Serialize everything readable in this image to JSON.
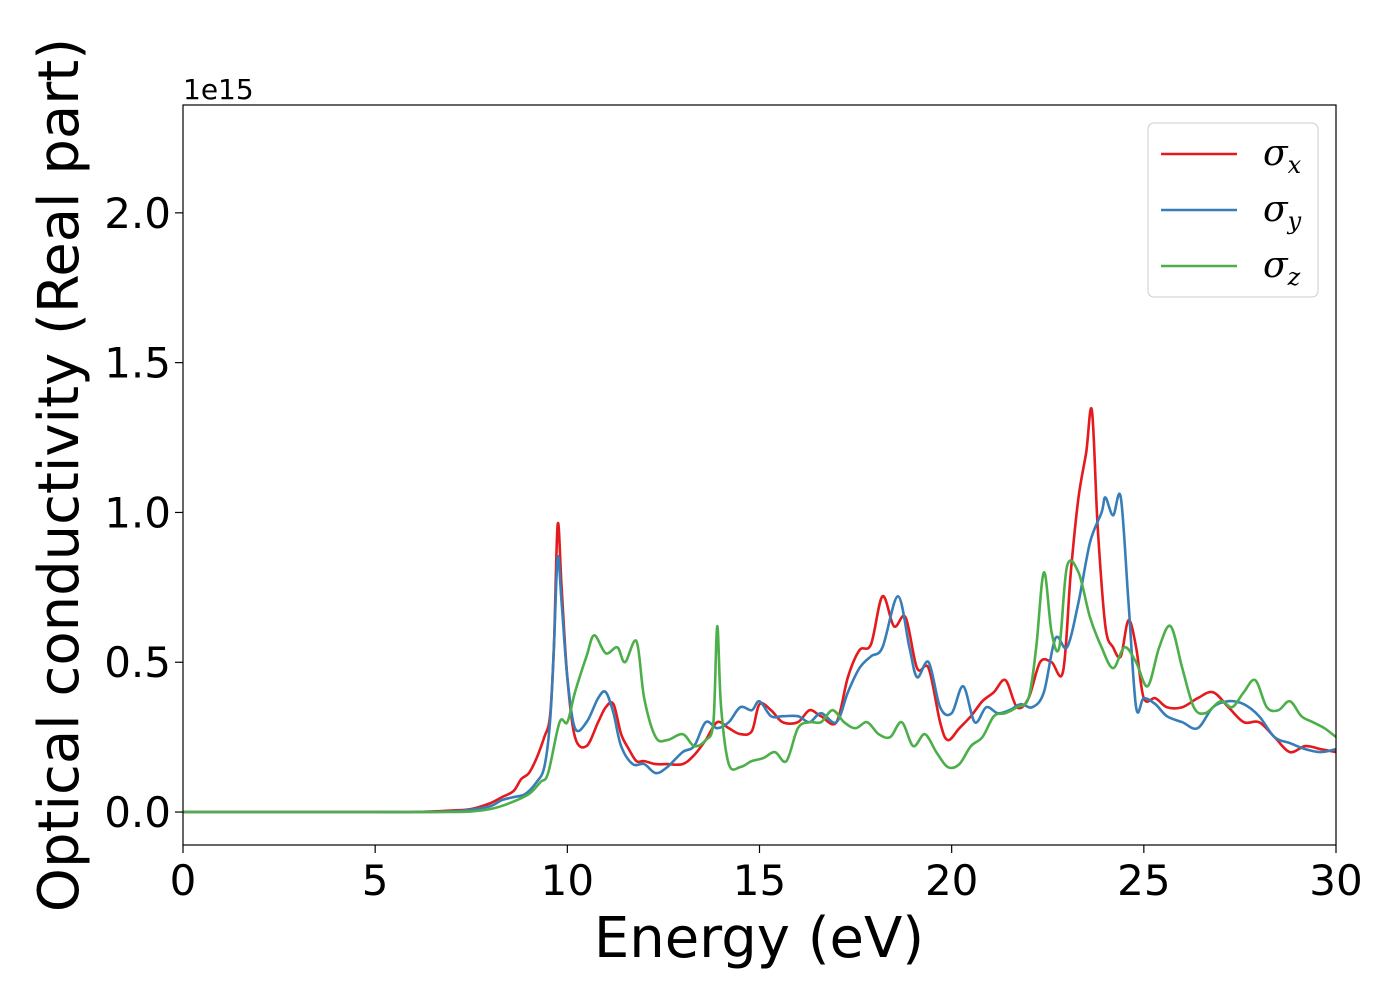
{
  "chart_data": {
    "type": "line",
    "xlabel": "Energy (eV)",
    "ylabel": "Optical conductivity (Real part)",
    "y_offset_text": "1e15",
    "xlim": [
      0,
      30
    ],
    "ylim": [
      -0.11,
      2.36
    ],
    "x_ticks": [
      0,
      5,
      10,
      15,
      20,
      25,
      30
    ],
    "x_tick_labels": [
      "0",
      "5",
      "10",
      "15",
      "20",
      "25",
      "30"
    ],
    "y_ticks": [
      0.0,
      0.5,
      1.0,
      1.5,
      2.0
    ],
    "y_tick_labels": [
      "0.0",
      "0.5",
      "1.0",
      "1.5",
      "2.0"
    ],
    "grid": false,
    "legend_position": "top-right",
    "colors": {
      "sigma_x": "#e41a1c",
      "sigma_y": "#377eb8",
      "sigma_z": "#4daf4a"
    },
    "series": [
      {
        "name": "σx",
        "symbol": "σ",
        "subscript": "x",
        "color": "#e41a1c",
        "x": [
          0,
          1,
          2,
          3,
          4,
          5,
          6,
          7,
          7.5,
          8,
          8.3,
          8.6,
          8.8,
          9.0,
          9.2,
          9.4,
          9.55,
          9.65,
          9.75,
          9.85,
          10.0,
          10.2,
          10.5,
          10.8,
          11.0,
          11.2,
          11.4,
          11.6,
          11.8,
          12.0,
          12.3,
          12.6,
          13.0,
          13.3,
          13.6,
          13.9,
          14.2,
          14.5,
          14.8,
          15.0,
          15.3,
          15.6,
          16.0,
          16.3,
          16.6,
          17.0,
          17.3,
          17.6,
          17.9,
          18.2,
          18.5,
          18.8,
          19.1,
          19.4,
          19.7,
          19.9,
          20.2,
          20.5,
          20.8,
          21.1,
          21.4,
          21.7,
          22.0,
          22.3,
          22.6,
          22.9,
          23.1,
          23.3,
          23.5,
          23.65,
          23.8,
          24.0,
          24.2,
          24.4,
          24.6,
          24.8,
          25.0,
          25.3,
          25.6,
          26.0,
          26.4,
          26.8,
          27.2,
          27.6,
          28.0,
          28.4,
          28.8,
          29.2,
          29.6,
          30.0
        ],
        "values": [
          0,
          0,
          0,
          0,
          0,
          0,
          0,
          0.005,
          0.01,
          0.03,
          0.05,
          0.07,
          0.11,
          0.13,
          0.18,
          0.25,
          0.32,
          0.55,
          0.96,
          0.75,
          0.45,
          0.25,
          0.22,
          0.3,
          0.35,
          0.36,
          0.26,
          0.21,
          0.17,
          0.17,
          0.16,
          0.16,
          0.16,
          0.19,
          0.24,
          0.3,
          0.28,
          0.26,
          0.27,
          0.36,
          0.34,
          0.3,
          0.3,
          0.34,
          0.32,
          0.3,
          0.45,
          0.54,
          0.56,
          0.72,
          0.62,
          0.65,
          0.48,
          0.48,
          0.3,
          0.24,
          0.28,
          0.32,
          0.37,
          0.4,
          0.44,
          0.35,
          0.38,
          0.5,
          0.5,
          0.47,
          0.8,
          1.05,
          1.2,
          1.34,
          0.95,
          0.62,
          0.55,
          0.52,
          0.64,
          0.55,
          0.38,
          0.38,
          0.35,
          0.35,
          0.38,
          0.4,
          0.35,
          0.3,
          0.3,
          0.25,
          0.2,
          0.22,
          0.21,
          0.2
        ]
      },
      {
        "name": "σy",
        "symbol": "σ",
        "subscript": "y",
        "color": "#377eb8",
        "x": [
          0,
          1,
          2,
          3,
          4,
          5,
          6,
          7,
          7.5,
          8,
          8.3,
          8.6,
          8.9,
          9.2,
          9.4,
          9.55,
          9.65,
          9.75,
          9.85,
          10.0,
          10.2,
          10.5,
          10.8,
          11.0,
          11.2,
          11.4,
          11.7,
          12.0,
          12.3,
          12.6,
          13.0,
          13.3,
          13.6,
          13.9,
          14.2,
          14.5,
          14.8,
          15.0,
          15.3,
          15.6,
          16.0,
          16.3,
          16.6,
          17.0,
          17.3,
          17.6,
          17.9,
          18.2,
          18.6,
          18.9,
          19.1,
          19.4,
          19.7,
          20.0,
          20.3,
          20.6,
          20.9,
          21.2,
          21.5,
          21.8,
          22.1,
          22.4,
          22.7,
          23.0,
          23.3,
          23.6,
          23.9,
          24.0,
          24.2,
          24.4,
          24.6,
          24.8,
          25.0,
          25.3,
          25.6,
          26.0,
          26.4,
          26.8,
          27.2,
          27.6,
          28.0,
          28.4,
          28.8,
          29.2,
          29.6,
          30.0
        ],
        "values": [
          0,
          0,
          0,
          0,
          0,
          0,
          0,
          0.002,
          0.008,
          0.02,
          0.04,
          0.05,
          0.06,
          0.1,
          0.15,
          0.3,
          0.55,
          0.85,
          0.7,
          0.45,
          0.28,
          0.3,
          0.38,
          0.4,
          0.33,
          0.22,
          0.16,
          0.16,
          0.13,
          0.15,
          0.2,
          0.22,
          0.3,
          0.28,
          0.3,
          0.35,
          0.34,
          0.37,
          0.32,
          0.32,
          0.32,
          0.3,
          0.33,
          0.3,
          0.4,
          0.48,
          0.52,
          0.55,
          0.72,
          0.55,
          0.45,
          0.5,
          0.35,
          0.33,
          0.42,
          0.3,
          0.35,
          0.33,
          0.34,
          0.36,
          0.35,
          0.4,
          0.58,
          0.55,
          0.7,
          0.9,
          1.0,
          1.05,
          0.99,
          1.05,
          0.7,
          0.35,
          0.38,
          0.36,
          0.32,
          0.3,
          0.28,
          0.35,
          0.37,
          0.36,
          0.32,
          0.25,
          0.23,
          0.21,
          0.2,
          0.21
        ]
      },
      {
        "name": "σz",
        "symbol": "σ",
        "subscript": "z",
        "color": "#4daf4a",
        "x": [
          0,
          1,
          2,
          3,
          4,
          5,
          6,
          7,
          7.5,
          8,
          8.5,
          9.0,
          9.3,
          9.5,
          9.8,
          10.0,
          10.2,
          10.5,
          10.7,
          11.0,
          11.3,
          11.5,
          11.8,
          12.0,
          12.3,
          12.6,
          13.0,
          13.3,
          13.6,
          13.8,
          13.9,
          14.0,
          14.2,
          14.5,
          14.8,
          15.1,
          15.4,
          15.7,
          16.0,
          16.3,
          16.6,
          16.9,
          17.2,
          17.5,
          17.8,
          18.1,
          18.4,
          18.7,
          19.0,
          19.3,
          19.6,
          19.9,
          20.2,
          20.5,
          20.8,
          21.1,
          21.4,
          21.7,
          22.0,
          22.2,
          22.4,
          22.6,
          22.8,
          23.0,
          23.3,
          23.6,
          23.9,
          24.2,
          24.5,
          24.8,
          25.1,
          25.4,
          25.7,
          26.0,
          26.3,
          26.6,
          27.0,
          27.3,
          27.6,
          27.9,
          28.2,
          28.5,
          28.8,
          29.1,
          29.4,
          29.7,
          30.0
        ],
        "values": [
          0,
          0,
          0,
          0,
          0,
          0,
          0,
          0,
          0.002,
          0.01,
          0.03,
          0.06,
          0.1,
          0.13,
          0.3,
          0.3,
          0.4,
          0.52,
          0.59,
          0.53,
          0.55,
          0.5,
          0.57,
          0.38,
          0.25,
          0.24,
          0.26,
          0.22,
          0.24,
          0.3,
          0.62,
          0.35,
          0.16,
          0.15,
          0.17,
          0.18,
          0.2,
          0.17,
          0.28,
          0.3,
          0.3,
          0.34,
          0.3,
          0.28,
          0.3,
          0.26,
          0.25,
          0.3,
          0.22,
          0.26,
          0.2,
          0.15,
          0.16,
          0.22,
          0.25,
          0.32,
          0.33,
          0.35,
          0.38,
          0.55,
          0.8,
          0.6,
          0.55,
          0.82,
          0.8,
          0.65,
          0.55,
          0.48,
          0.55,
          0.5,
          0.42,
          0.55,
          0.62,
          0.48,
          0.35,
          0.33,
          0.37,
          0.35,
          0.4,
          0.44,
          0.35,
          0.34,
          0.37,
          0.32,
          0.3,
          0.28,
          0.25
        ]
      }
    ]
  }
}
